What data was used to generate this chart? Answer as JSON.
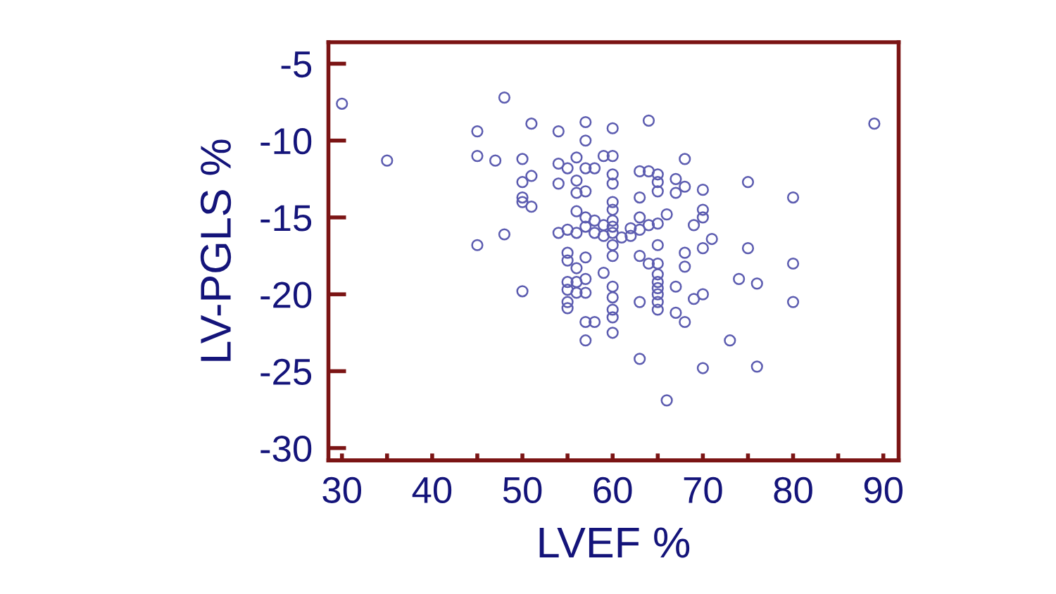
{
  "chart_data": {
    "type": "scatter",
    "xlabel": "LVEF %",
    "ylabel": "LV-PGLS %",
    "xlim": [
      28.5,
      91.7
    ],
    "ylim": [
      -30.8,
      -3.6
    ],
    "xticks": [
      30,
      {
        "value": 35,
        "label": null
      },
      40,
      {
        "value": 45,
        "label": null
      },
      50,
      {
        "value": 55,
        "label": null
      },
      60,
      {
        "value": 65,
        "label": null
      },
      70,
      {
        "value": 75,
        "label": null
      },
      80,
      {
        "value": 85,
        "label": null
      },
      90
    ],
    "yticks": [
      -30,
      -25,
      -20,
      -15,
      -10,
      -5
    ],
    "grid": false,
    "legend": false,
    "marker": "circle",
    "series": [
      {
        "color": "#5c5cb0",
        "x": [
          30,
          35,
          45,
          45,
          45,
          47,
          48,
          48,
          50,
          50,
          50,
          50,
          50,
          51,
          51,
          51,
          54,
          54,
          54,
          54,
          55,
          55,
          55,
          55,
          55,
          55,
          55,
          55,
          56,
          56,
          56,
          56,
          56,
          56,
          56,
          56,
          57,
          57,
          57,
          57,
          57,
          57,
          57,
          57,
          57,
          57,
          57,
          58,
          58,
          58,
          58,
          59,
          59,
          59,
          59,
          60,
          60,
          60,
          60,
          60,
          60,
          60,
          60,
          60,
          60,
          60,
          60,
          60,
          60,
          60,
          60,
          61,
          62,
          62,
          63,
          63,
          63,
          63,
          63,
          63,
          63,
          64,
          64,
          64,
          64,
          65,
          65,
          65,
          65,
          65,
          65,
          65,
          65,
          65,
          65,
          65,
          65,
          66,
          66,
          67,
          67,
          67,
          67,
          68,
          68,
          68,
          68,
          68,
          69,
          69,
          70,
          70,
          70,
          70,
          70,
          70,
          71,
          73,
          74,
          75,
          75,
          76,
          76,
          80,
          80,
          80,
          89
        ],
        "values": [
          -7.6,
          -11.3,
          -9.4,
          -11,
          -16.8,
          -11.3,
          -7.2,
          -16.1,
          -11.2,
          -12.7,
          -13.7,
          -14,
          -19.8,
          -8.9,
          -12.3,
          -14.3,
          -9.4,
          -11.5,
          -12.8,
          -16,
          -11.8,
          -15.8,
          -17.3,
          -17.8,
          -19.2,
          -19.7,
          -20.5,
          -20.9,
          -11.1,
          -12.6,
          -13.4,
          -14.6,
          -16,
          -18.3,
          -19.2,
          -19.9,
          -8.8,
          -10,
          -11.8,
          -13.3,
          -15,
          -15.6,
          -17.6,
          -19,
          -19.9,
          -21.8,
          -23,
          -11.8,
          -15.2,
          -16,
          -21.8,
          -11,
          -15.5,
          -16.2,
          -18.6,
          -9.2,
          -11,
          -12.2,
          -12.8,
          -14,
          -14.5,
          -15.2,
          -15.6,
          -16,
          -16.8,
          -17.5,
          -19.5,
          -20.2,
          -21,
          -21.5,
          -22.5,
          -16.3,
          -16.2,
          -15.7,
          -12,
          -13.7,
          -15,
          -15.8,
          -17.5,
          -20.5,
          -24.2,
          -8.7,
          -12,
          -15.5,
          -18,
          -12.2,
          -12.7,
          -13.3,
          -15.4,
          -16.8,
          -18,
          -18.7,
          -19.2,
          -19.6,
          -20,
          -20.5,
          -21,
          -14.8,
          -26.9,
          -12.5,
          -13.4,
          -19.5,
          -21.2,
          -11.2,
          -13,
          -17.3,
          -18.2,
          -21.8,
          -15.5,
          -20.3,
          -13.2,
          -14.5,
          -15,
          -17,
          -20,
          -24.8,
          -16.4,
          -23,
          -19,
          -12.7,
          -17,
          -19.3,
          -24.7,
          -13.7,
          -18,
          -20.5,
          -8.9
        ]
      }
    ]
  }
}
